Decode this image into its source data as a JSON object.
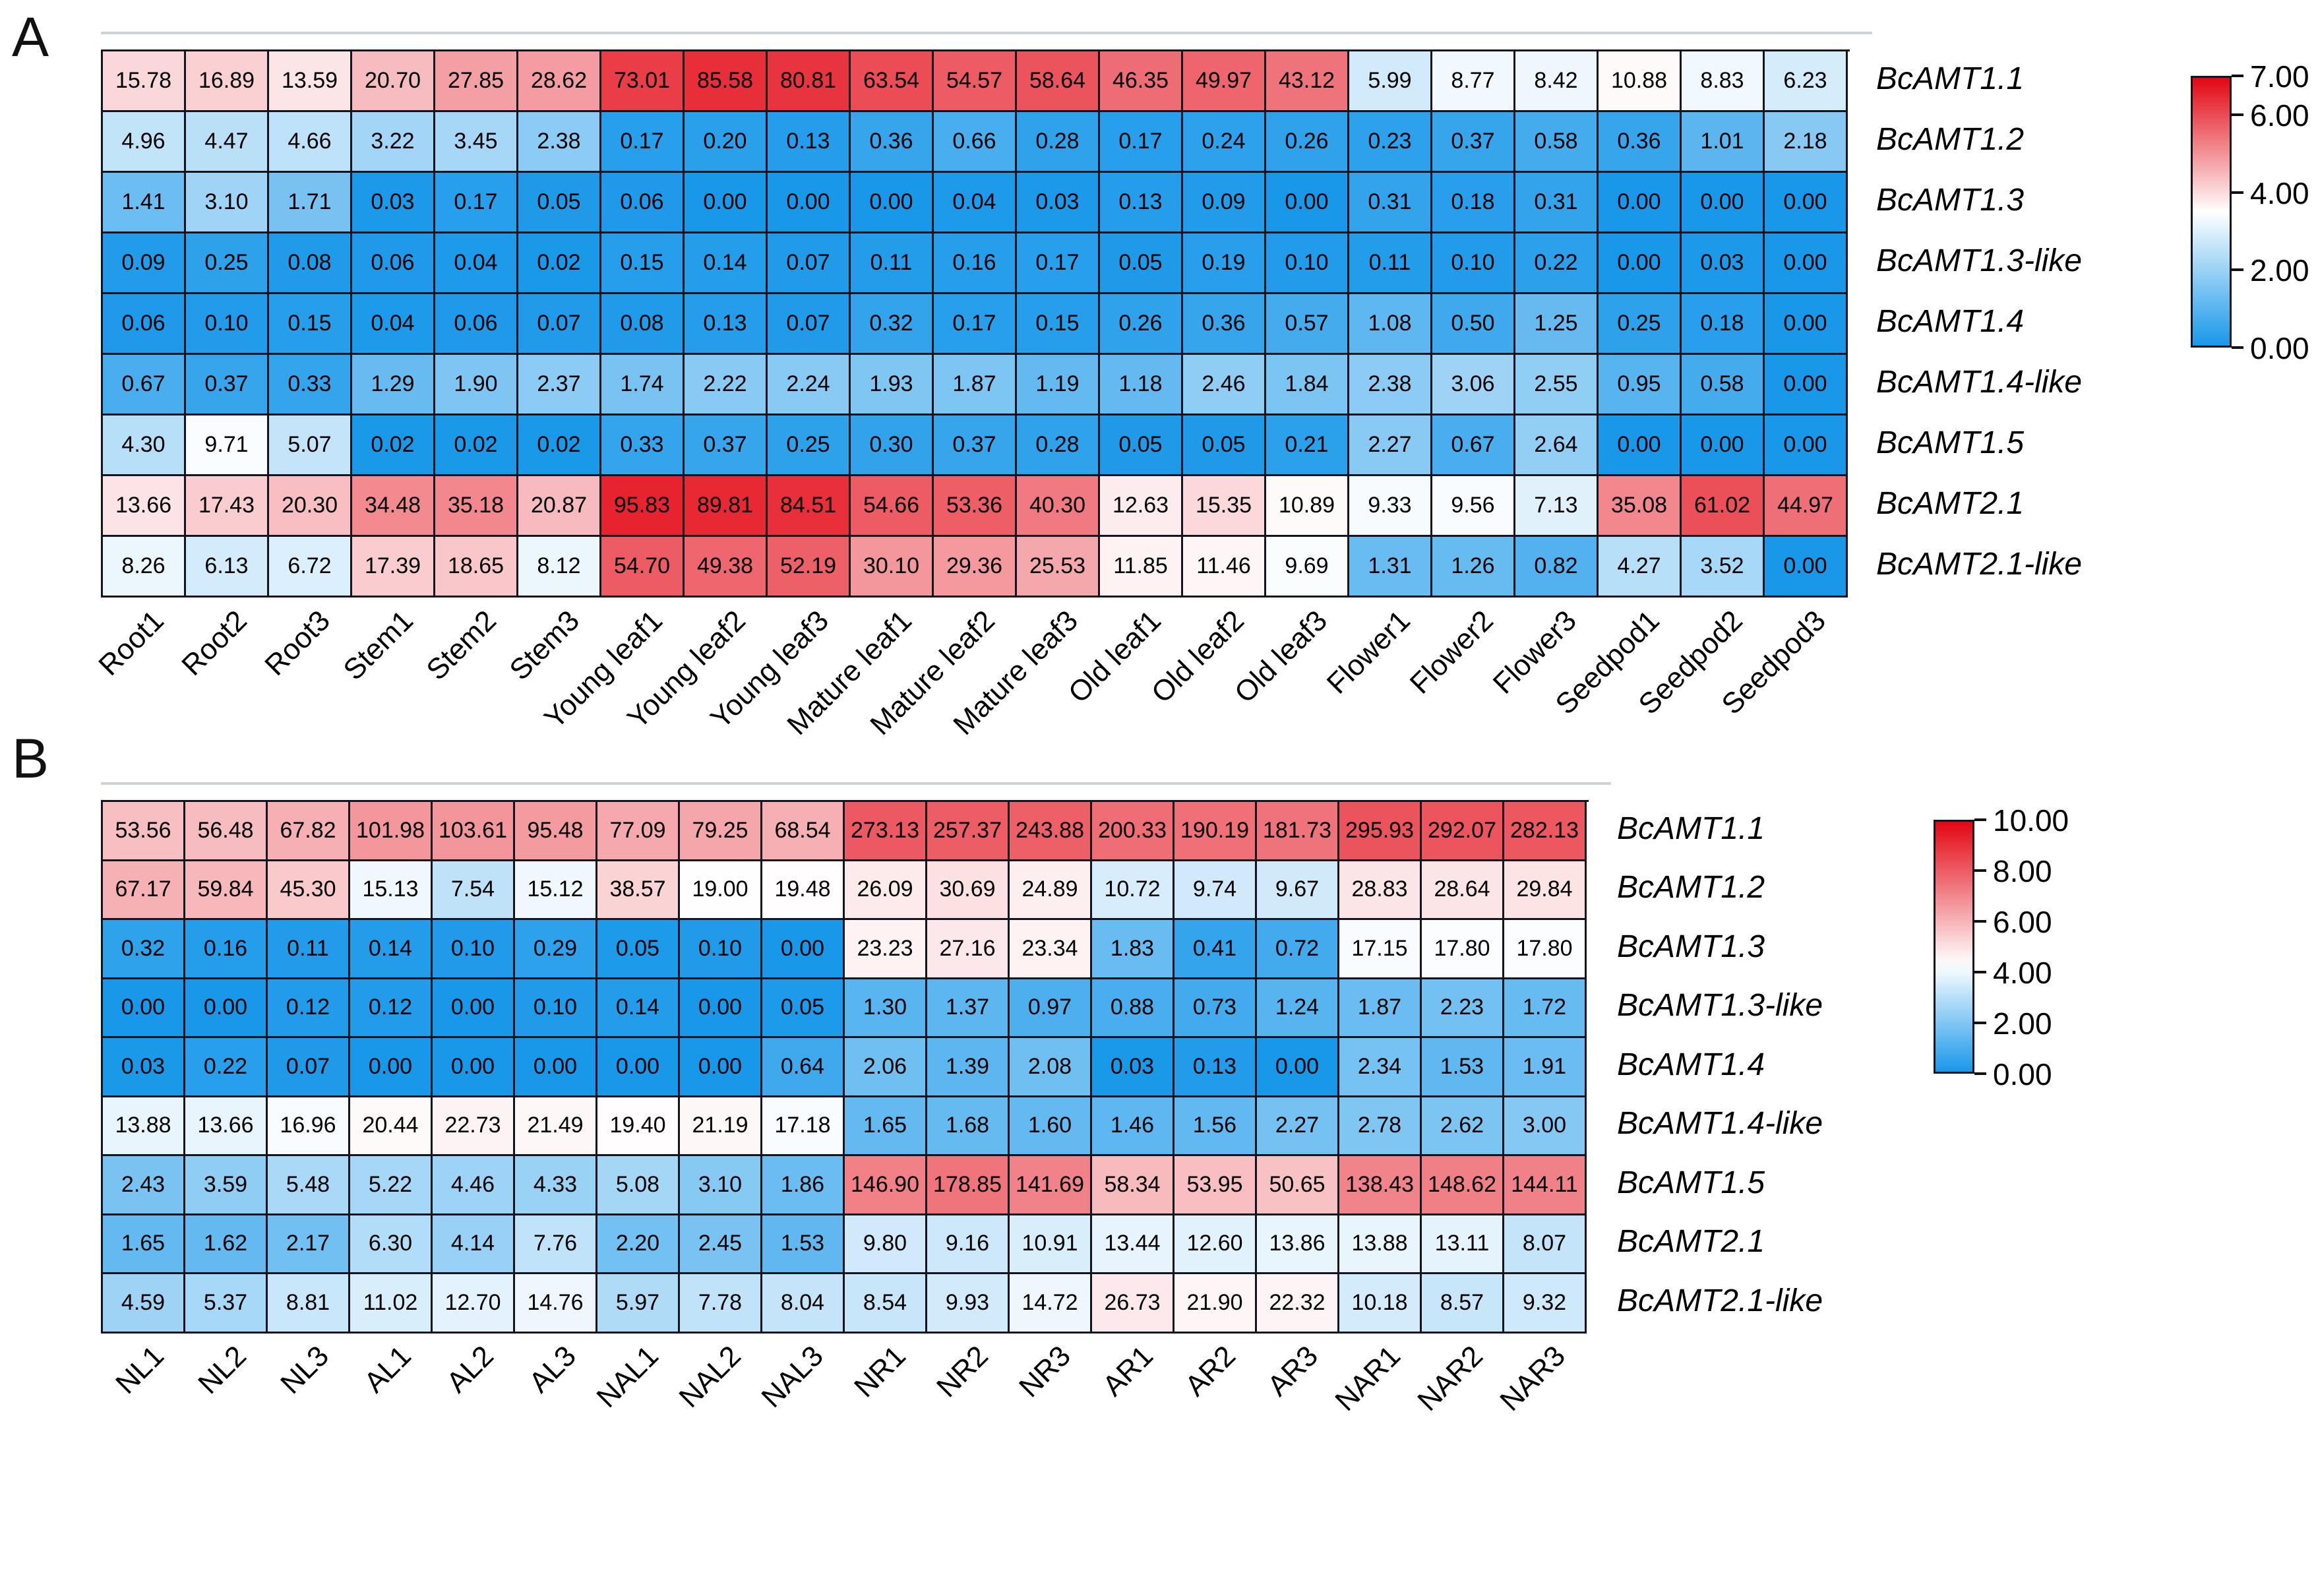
{
  "figure": {
    "panel_a_letter": "A",
    "panel_b_letter": "B"
  },
  "colors": {
    "heat_red": "#e30613",
    "heat_white": "#ffffff",
    "heat_blue": "#1998e9",
    "grid_border": "#14141e",
    "spine_gray": "#ced1d6",
    "text": "#000000"
  },
  "chart_data": [
    {
      "type": "heatmap",
      "panel": "A",
      "rows": [
        "BcAMT1.1",
        "BcAMT1.2",
        "BcAMT1.3",
        "BcAMT1.3-like",
        "BcAMT1.4",
        "BcAMT1.4-like",
        "BcAMT1.5",
        "BcAMT2.1",
        "BcAMT2.1-like"
      ],
      "columns": [
        "Root1",
        "Root2",
        "Root3",
        "Stem1",
        "Stem2",
        "Stem3",
        "Young leaf1",
        "Young leaf2",
        "Young leaf3",
        "Mature leaf1",
        "Mature leaf2",
        "Mature leaf3",
        "Old leaf1",
        "Old leaf2",
        "Old leaf3",
        "Flower1",
        "Flower2",
        "Flower3",
        "Seedpod1",
        "Seedpod2",
        "Seedpod3"
      ],
      "values": [
        [
          15.78,
          16.89,
          13.59,
          20.7,
          27.85,
          28.62,
          73.01,
          85.58,
          80.81,
          63.54,
          54.57,
          58.64,
          46.35,
          49.97,
          43.12,
          5.99,
          8.77,
          8.42,
          10.88,
          8.83,
          6.23
        ],
        [
          4.96,
          4.47,
          4.66,
          3.22,
          3.45,
          2.38,
          0.17,
          0.2,
          0.13,
          0.36,
          0.66,
          0.28,
          0.17,
          0.24,
          0.26,
          0.23,
          0.37,
          0.58,
          0.36,
          1.01,
          2.18
        ],
        [
          1.41,
          3.1,
          1.71,
          0.03,
          0.17,
          0.05,
          0.06,
          0.0,
          0.0,
          0.0,
          0.04,
          0.03,
          0.13,
          0.09,
          0.0,
          0.31,
          0.18,
          0.31,
          0.0,
          0.0,
          0.0
        ],
        [
          0.09,
          0.25,
          0.08,
          0.06,
          0.04,
          0.02,
          0.15,
          0.14,
          0.07,
          0.11,
          0.16,
          0.17,
          0.05,
          0.19,
          0.1,
          0.11,
          0.1,
          0.22,
          0.0,
          0.03,
          0.0
        ],
        [
          0.06,
          0.1,
          0.15,
          0.04,
          0.06,
          0.07,
          0.08,
          0.13,
          0.07,
          0.32,
          0.17,
          0.15,
          0.26,
          0.36,
          0.57,
          1.08,
          0.5,
          1.25,
          0.25,
          0.18,
          0.0
        ],
        [
          0.67,
          0.37,
          0.33,
          1.29,
          1.9,
          2.37,
          1.74,
          2.22,
          2.24,
          1.93,
          1.87,
          1.19,
          1.18,
          2.46,
          1.84,
          2.38,
          3.06,
          2.55,
          0.95,
          0.58,
          0.0
        ],
        [
          4.3,
          9.71,
          5.07,
          0.02,
          0.02,
          0.02,
          0.33,
          0.37,
          0.25,
          0.3,
          0.37,
          0.28,
          0.05,
          0.05,
          0.21,
          2.27,
          0.67,
          2.64,
          0.0,
          0.0,
          0.0
        ],
        [
          13.66,
          17.43,
          20.3,
          34.48,
          35.18,
          20.87,
          95.83,
          89.81,
          84.51,
          54.66,
          53.36,
          40.3,
          12.63,
          15.35,
          10.89,
          9.33,
          9.56,
          7.13,
          35.08,
          61.02,
          44.97
        ],
        [
          8.26,
          6.13,
          6.72,
          17.39,
          18.65,
          8.12,
          54.7,
          49.38,
          52.19,
          30.1,
          29.36,
          25.53,
          11.85,
          11.46,
          9.69,
          1.31,
          1.26,
          0.82,
          4.27,
          3.52,
          0.0
        ]
      ],
      "value_format": "2dp",
      "color_mapping": "log2(value+1) on blue-white-red scale",
      "colorbar": {
        "min": 0,
        "max": 7,
        "white_point": 3.5,
        "tick_values": [
          7,
          6,
          4,
          2,
          0
        ],
        "tick_labels": [
          "7.00",
          "6.00",
          "4.00",
          "2.00",
          "0.00"
        ]
      }
    },
    {
      "type": "heatmap",
      "panel": "B",
      "rows": [
        "BcAMT1.1",
        "BcAMT1.2",
        "BcAMT1.3",
        "BcAMT1.3-like",
        "BcAMT1.4",
        "BcAMT1.4-like",
        "BcAMT1.5",
        "BcAMT2.1",
        "BcAMT2.1-like"
      ],
      "columns": [
        "NL1",
        "NL2",
        "NL3",
        "AL1",
        "AL2",
        "AL3",
        "NAL1",
        "NAL2",
        "NAL3",
        "NR1",
        "NR2",
        "NR3",
        "AR1",
        "AR2",
        "AR3",
        "NAR1",
        "NAR2",
        "NAR3"
      ],
      "values": [
        [
          53.56,
          56.48,
          67.82,
          101.98,
          103.61,
          95.48,
          77.09,
          79.25,
          68.54,
          273.13,
          257.37,
          243.88,
          200.33,
          190.19,
          181.73,
          295.93,
          292.07,
          282.13
        ],
        [
          67.17,
          59.84,
          45.3,
          15.13,
          7.54,
          15.12,
          38.57,
          19.0,
          19.48,
          26.09,
          30.69,
          24.89,
          10.72,
          9.74,
          9.67,
          28.83,
          28.64,
          29.84
        ],
        [
          0.32,
          0.16,
          0.11,
          0.14,
          0.1,
          0.29,
          0.05,
          0.1,
          0.0,
          23.23,
          27.16,
          23.34,
          1.83,
          0.41,
          0.72,
          17.15,
          17.8,
          17.8
        ],
        [
          0.0,
          0.0,
          0.12,
          0.12,
          0.0,
          0.1,
          0.14,
          0.0,
          0.05,
          1.3,
          1.37,
          0.97,
          0.88,
          0.73,
          1.24,
          1.87,
          2.23,
          1.72
        ],
        [
          0.03,
          0.22,
          0.07,
          0.0,
          0.0,
          0.0,
          0.0,
          0.0,
          0.64,
          2.06,
          1.39,
          2.08,
          0.03,
          0.13,
          0.0,
          2.34,
          1.53,
          1.91
        ],
        [
          13.88,
          13.66,
          16.96,
          20.44,
          22.73,
          21.49,
          19.4,
          21.19,
          17.18,
          1.65,
          1.68,
          1.6,
          1.46,
          1.56,
          2.27,
          2.78,
          2.62,
          3.0
        ],
        [
          2.43,
          3.59,
          5.48,
          5.22,
          4.46,
          4.33,
          5.08,
          3.1,
          1.86,
          146.9,
          178.85,
          141.69,
          58.34,
          53.95,
          50.65,
          138.43,
          148.62,
          144.11
        ],
        [
          1.65,
          1.62,
          2.17,
          6.3,
          4.14,
          7.76,
          2.2,
          2.45,
          1.53,
          9.8,
          9.16,
          10.91,
          13.44,
          12.6,
          13.86,
          13.88,
          13.11,
          8.07
        ],
        [
          4.59,
          5.37,
          8.81,
          11.02,
          12.7,
          14.76,
          5.97,
          7.78,
          8.04,
          8.54,
          9.93,
          14.72,
          26.73,
          21.9,
          22.32,
          10.18,
          8.57,
          9.32
        ]
      ],
      "value_format": "2dp",
      "color_mapping": "log2(value+1) on blue-white-red scale",
      "colorbar": {
        "min": 0,
        "max": 10,
        "white_point": 4.3,
        "tick_values": [
          10,
          8,
          6,
          4,
          2,
          0
        ],
        "tick_labels": [
          "10.00",
          "8.00",
          "6.00",
          "4.00",
          "2.00",
          "0.00"
        ]
      }
    }
  ]
}
